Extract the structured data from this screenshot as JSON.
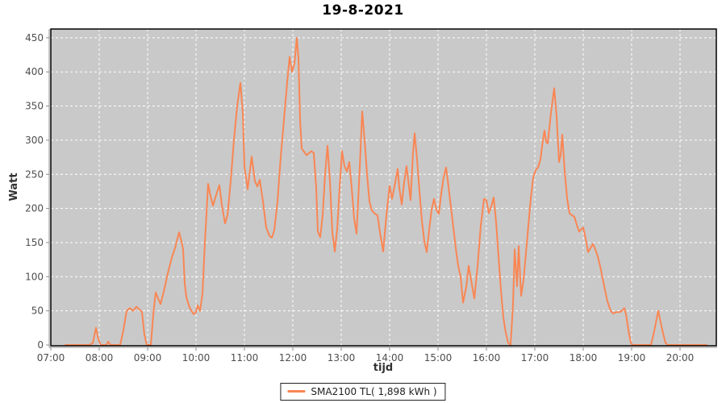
{
  "title": "19-8-2021",
  "legend": {
    "items": [
      {
        "label": "SMA2100 TL( 1,898 kWh )",
        "color": "#F98654"
      }
    ]
  },
  "axes": {
    "x": {
      "label": "tijd",
      "ticks": [
        "07:00",
        "08:00",
        "09:00",
        "10:00",
        "11:00",
        "12:00",
        "13:00",
        "14:00",
        "15:00",
        "16:00",
        "17:00",
        "18:00",
        "19:00",
        "20:00"
      ]
    },
    "y": {
      "label": "Watt",
      "ticks": [
        0,
        50,
        100,
        150,
        200,
        250,
        300,
        350,
        400,
        450
      ]
    }
  },
  "colors": {
    "plot_background": "#C9C9C9",
    "gridline": "#FFFFFF",
    "plot_border": "#000000",
    "axis_line": "#8C8C8C",
    "tick_text": "#4D4D4D",
    "axis_title_text": "#333333",
    "series": "#F98654"
  },
  "chart_data": {
    "type": "line",
    "title": "19-8-2021",
    "xlabel": "tijd",
    "ylabel": "Watt",
    "x_range": [
      "07:00",
      "20:45"
    ],
    "ylim": [
      0,
      463
    ],
    "y_gridline_step": 50,
    "x_gridline_step_minutes": 60,
    "grid": true,
    "legend_position": "bottom-center",
    "series": [
      {
        "name": "SMA2100 TL( 1,898 kWh )",
        "color": "#F98654",
        "points": [
          [
            "07:18",
            0
          ],
          [
            "07:48",
            0
          ],
          [
            "07:52",
            3
          ],
          [
            "07:56",
            25
          ],
          [
            "07:59",
            8
          ],
          [
            "08:02",
            0
          ],
          [
            "08:09",
            0
          ],
          [
            "08:11",
            5
          ],
          [
            "08:14",
            0
          ],
          [
            "08:26",
            0
          ],
          [
            "08:30",
            22
          ],
          [
            "08:34",
            50
          ],
          [
            "08:38",
            54
          ],
          [
            "08:42",
            50
          ],
          [
            "08:46",
            56
          ],
          [
            "08:50",
            52
          ],
          [
            "08:53",
            48
          ],
          [
            "08:56",
            15
          ],
          [
            "08:59",
            0
          ],
          [
            "09:04",
            0
          ],
          [
            "09:07",
            45
          ],
          [
            "09:10",
            77
          ],
          [
            "09:13",
            68
          ],
          [
            "09:16",
            60
          ],
          [
            "09:20",
            78
          ],
          [
            "09:25",
            105
          ],
          [
            "09:30",
            128
          ],
          [
            "09:34",
            142
          ],
          [
            "09:39",
            165
          ],
          [
            "09:42",
            152
          ],
          [
            "09:44",
            140
          ],
          [
            "09:46",
            90
          ],
          [
            "09:48",
            70
          ],
          [
            "09:52",
            55
          ],
          [
            "09:57",
            45
          ],
          [
            "10:00",
            48
          ],
          [
            "10:02",
            58
          ],
          [
            "10:05",
            50
          ],
          [
            "10:08",
            75
          ],
          [
            "10:11",
            150
          ],
          [
            "10:15",
            236
          ],
          [
            "10:18",
            218
          ],
          [
            "10:21",
            204
          ],
          [
            "10:25",
            220
          ],
          [
            "10:29",
            234
          ],
          [
            "10:32",
            205
          ],
          [
            "10:36",
            178
          ],
          [
            "10:39",
            190
          ],
          [
            "10:43",
            240
          ],
          [
            "10:47",
            300
          ],
          [
            "10:51",
            350
          ],
          [
            "10:55",
            384
          ],
          [
            "10:58",
            340
          ],
          [
            "11:00",
            262
          ],
          [
            "11:04",
            228
          ],
          [
            "11:09",
            276
          ],
          [
            "11:13",
            240
          ],
          [
            "11:16",
            232
          ],
          [
            "11:19",
            242
          ],
          [
            "11:23",
            210
          ],
          [
            "11:27",
            172
          ],
          [
            "11:31",
            160
          ],
          [
            "11:34",
            157
          ],
          [
            "11:37",
            168
          ],
          [
            "11:41",
            210
          ],
          [
            "11:45",
            275
          ],
          [
            "11:49",
            330
          ],
          [
            "11:53",
            385
          ],
          [
            "11:56",
            422
          ],
          [
            "11:59",
            400
          ],
          [
            "12:02",
            412
          ],
          [
            "12:05",
            450
          ],
          [
            "12:07",
            420
          ],
          [
            "12:09",
            330
          ],
          [
            "12:11",
            288
          ],
          [
            "12:14",
            283
          ],
          [
            "12:17",
            278
          ],
          [
            "12:20",
            281
          ],
          [
            "12:23",
            284
          ],
          [
            "12:26",
            281
          ],
          [
            "12:29",
            230
          ],
          [
            "12:31",
            166
          ],
          [
            "12:34",
            158
          ],
          [
            "12:37",
            190
          ],
          [
            "12:40",
            250
          ],
          [
            "12:43",
            292
          ],
          [
            "12:46",
            240
          ],
          [
            "12:49",
            165
          ],
          [
            "12:52",
            137
          ],
          [
            "12:55",
            170
          ],
          [
            "12:58",
            230
          ],
          [
            "13:01",
            284
          ],
          [
            "13:04",
            262
          ],
          [
            "13:07",
            254
          ],
          [
            "13:10",
            268
          ],
          [
            "13:13",
            230
          ],
          [
            "13:16",
            185
          ],
          [
            "13:19",
            163
          ],
          [
            "13:23",
            260
          ],
          [
            "13:26",
            342
          ],
          [
            "13:29",
            300
          ],
          [
            "13:32",
            250
          ],
          [
            "13:35",
            210
          ],
          [
            "13:38",
            197
          ],
          [
            "13:42",
            192
          ],
          [
            "13:45",
            190
          ],
          [
            "13:48",
            165
          ],
          [
            "13:52",
            137
          ],
          [
            "13:56",
            190
          ],
          [
            "14:00",
            233
          ],
          [
            "14:03",
            214
          ],
          [
            "14:06",
            232
          ],
          [
            "14:10",
            258
          ],
          [
            "14:12",
            230
          ],
          [
            "14:15",
            206
          ],
          [
            "14:18",
            238
          ],
          [
            "14:21",
            262
          ],
          [
            "14:24",
            232
          ],
          [
            "14:26",
            212
          ],
          [
            "14:29",
            282
          ],
          [
            "14:31",
            310
          ],
          [
            "14:34",
            272
          ],
          [
            "14:37",
            225
          ],
          [
            "14:40",
            182
          ],
          [
            "14:43",
            152
          ],
          [
            "14:46",
            136
          ],
          [
            "14:49",
            168
          ],
          [
            "14:52",
            198
          ],
          [
            "14:55",
            214
          ],
          [
            "14:58",
            198
          ],
          [
            "15:01",
            192
          ],
          [
            "15:04",
            222
          ],
          [
            "15:07",
            246
          ],
          [
            "15:10",
            260
          ],
          [
            "15:13",
            232
          ],
          [
            "15:16",
            202
          ],
          [
            "15:19",
            172
          ],
          [
            "15:22",
            142
          ],
          [
            "15:25",
            116
          ],
          [
            "15:28",
            100
          ],
          [
            "15:31",
            62
          ],
          [
            "15:35",
            85
          ],
          [
            "15:38",
            116
          ],
          [
            "15:41",
            95
          ],
          [
            "15:45",
            68
          ],
          [
            "15:49",
            115
          ],
          [
            "15:53",
            175
          ],
          [
            "15:57",
            214
          ],
          [
            "16:00",
            212
          ],
          [
            "16:03",
            193
          ],
          [
            "16:06",
            203
          ],
          [
            "16:09",
            216
          ],
          [
            "16:12",
            180
          ],
          [
            "16:15",
            130
          ],
          [
            "16:18",
            80
          ],
          [
            "16:21",
            40
          ],
          [
            "16:24",
            18
          ],
          [
            "16:27",
            3
          ],
          [
            "16:30",
            0
          ],
          [
            "16:33",
            60
          ],
          [
            "16:35",
            140
          ],
          [
            "16:38",
            86
          ],
          [
            "16:40",
            145
          ],
          [
            "16:43",
            72
          ],
          [
            "16:46",
            95
          ],
          [
            "16:49",
            135
          ],
          [
            "16:52",
            175
          ],
          [
            "16:55",
            215
          ],
          [
            "16:58",
            245
          ],
          [
            "17:01",
            256
          ],
          [
            "17:04",
            260
          ],
          [
            "17:07",
            272
          ],
          [
            "17:10",
            300
          ],
          [
            "17:12",
            314
          ],
          [
            "17:14",
            298
          ],
          [
            "17:16",
            295
          ],
          [
            "17:20",
            340
          ],
          [
            "17:24",
            376
          ],
          [
            "17:27",
            335
          ],
          [
            "17:30",
            268
          ],
          [
            "17:32",
            278
          ],
          [
            "17:34",
            308
          ],
          [
            "17:37",
            255
          ],
          [
            "17:40",
            215
          ],
          [
            "17:43",
            193
          ],
          [
            "17:46",
            190
          ],
          [
            "17:49",
            188
          ],
          [
            "17:52",
            176
          ],
          [
            "17:55",
            166
          ],
          [
            "17:58",
            170
          ],
          [
            "18:00",
            172
          ],
          [
            "18:03",
            156
          ],
          [
            "18:06",
            136
          ],
          [
            "18:09",
            142
          ],
          [
            "18:12",
            148
          ],
          [
            "18:15",
            140
          ],
          [
            "18:18",
            130
          ],
          [
            "18:22",
            110
          ],
          [
            "18:26",
            86
          ],
          [
            "18:30",
            64
          ],
          [
            "18:34",
            50
          ],
          [
            "18:37",
            46
          ],
          [
            "18:41",
            48
          ],
          [
            "18:45",
            48
          ],
          [
            "18:48",
            50
          ],
          [
            "18:51",
            54
          ],
          [
            "18:53",
            45
          ],
          [
            "18:56",
            22
          ],
          [
            "18:59",
            3
          ],
          [
            "19:01",
            0
          ],
          [
            "19:24",
            0
          ],
          [
            "19:28",
            20
          ],
          [
            "19:33",
            50
          ],
          [
            "19:38",
            22
          ],
          [
            "19:42",
            3
          ],
          [
            "19:45",
            0
          ],
          [
            "20:33",
            0
          ]
        ]
      }
    ]
  }
}
